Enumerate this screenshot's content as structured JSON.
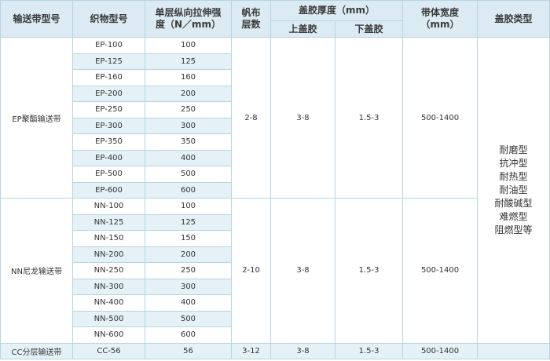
{
  "headers": {
    "belt_model": "输送带型号",
    "fabric_model": "织物型号",
    "tensile_line1": "单层纵向拉伸强",
    "tensile_line2": "度（N／mm）",
    "plies_line1": "帆布",
    "plies_line2": "层数",
    "cover_thickness": "盖胶厚度（mm）",
    "top_cover": "上盖胶",
    "bottom_cover": "下盖胶",
    "width_line1": "带体宽度",
    "width_line2": "（mm）",
    "cover_type": "盖胶类型"
  },
  "groups": {
    "ep": {
      "name": "EP聚酯输送带",
      "plies": "2-8",
      "top": "3-8",
      "bottom": "1.5-3",
      "width": "500-1400",
      "rows": [
        {
          "fabric": "EP-100",
          "strength": "100"
        },
        {
          "fabric": "EP-125",
          "strength": "125"
        },
        {
          "fabric": "EP-160",
          "strength": "160"
        },
        {
          "fabric": "EP-200",
          "strength": "200"
        },
        {
          "fabric": "EP-250",
          "strength": "250"
        },
        {
          "fabric": "EP-300",
          "strength": "300"
        },
        {
          "fabric": "EP-350",
          "strength": "350"
        },
        {
          "fabric": "EP-400",
          "strength": "400"
        },
        {
          "fabric": "EP-500",
          "strength": "500"
        },
        {
          "fabric": "EP-600",
          "strength": "600"
        }
      ]
    },
    "nn": {
      "name": "NN尼龙输送带",
      "plies": "2-10",
      "top": "3-8",
      "bottom": "1.5-3",
      "width": "500-1400",
      "rows": [
        {
          "fabric": "NN-100",
          "strength": "100"
        },
        {
          "fabric": "NN-125",
          "strength": "125"
        },
        {
          "fabric": "NN-150",
          "strength": "150"
        },
        {
          "fabric": "NN-200",
          "strength": "200"
        },
        {
          "fabric": "NN-250",
          "strength": "250"
        },
        {
          "fabric": "NN-300",
          "strength": "300"
        },
        {
          "fabric": "NN-400",
          "strength": "400"
        },
        {
          "fabric": "NN-500",
          "strength": "500"
        },
        {
          "fabric": "NN-600",
          "strength": "600"
        }
      ]
    },
    "cc": {
      "name": "CC分层输送带",
      "fabric": "CC-56",
      "strength": "56",
      "plies": "3-12",
      "top": "3-8",
      "bottom": "1.5-3",
      "width": "500-1400"
    }
  },
  "cover_types": [
    "耐磨型",
    "抗冲型",
    "耐热型",
    "耐油型",
    "耐酸碱型",
    "难燃型",
    "阻燃型等"
  ],
  "colors": {
    "header_bg": "#dcebf3",
    "stripe_bg": "#e4f2f7",
    "border": "#b7d4e2",
    "text": "#333333"
  }
}
